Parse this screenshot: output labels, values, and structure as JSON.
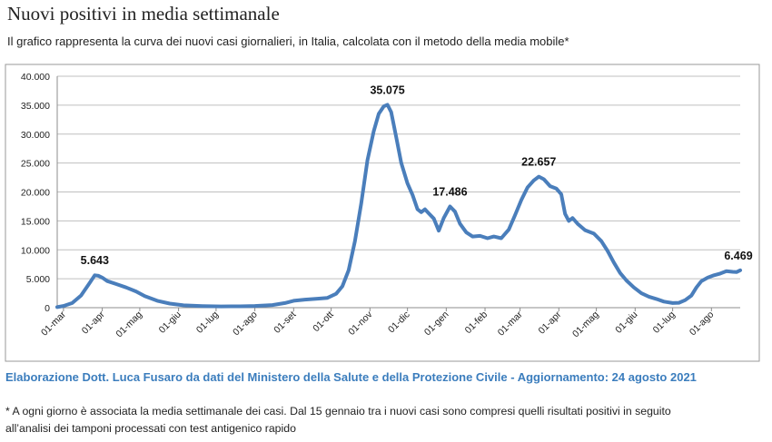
{
  "header": {
    "title": "Nuovi positivi in media settimanale",
    "subtitle": "Il grafico rappresenta la curva dei nuovi casi giornalieri, in Italia, calcolata con il metodo della media mobile*"
  },
  "footer": {
    "credit": "Elaborazione Dott. Luca Fusaro da dati del Ministero della Salute e della Protezione Civile - Aggiornamento: 24 agosto 2021",
    "footnote_line1": "* A ogni giorno è associata la media settimanale dei casi. Dal 15 gennaio tra i nuovi casi sono compresi quelli risultati positivi in seguito",
    "footnote_line2": "all’analisi dei tamponi processati con test antigenico rapido"
  },
  "colors": {
    "line": "#4a7ebb",
    "grid": "#bfbfbf",
    "credit": "#3b7dbd"
  },
  "chart_data": {
    "type": "line",
    "title": "",
    "xlabel": "",
    "ylabel": "",
    "ylim": [
      0,
      40000
    ],
    "yticks": [
      0,
      5000,
      10000,
      15000,
      20000,
      25000,
      30000,
      35000,
      40000
    ],
    "ytick_labels": [
      "0",
      "5.000",
      "10.000",
      "15.000",
      "20.000",
      "25.000",
      "30.000",
      "35.000",
      "40.000"
    ],
    "grid": true,
    "legend": "none",
    "xticks": [
      {
        "label": "01-mar",
        "date": "2020-03-01"
      },
      {
        "label": "01-apr",
        "date": "2020-04-01"
      },
      {
        "label": "01-mag",
        "date": "2020-05-01"
      },
      {
        "label": "01-giu",
        "date": "2020-06-01"
      },
      {
        "label": "01-lug",
        "date": "2020-07-01"
      },
      {
        "label": "01-ago",
        "date": "2020-08-01"
      },
      {
        "label": "01-set",
        "date": "2020-09-01"
      },
      {
        "label": "01-ott",
        "date": "2020-10-01"
      },
      {
        "label": "01-nov",
        "date": "2020-11-01"
      },
      {
        "label": "01-dic",
        "date": "2020-12-01"
      },
      {
        "label": "01-gen",
        "date": "2021-01-01"
      },
      {
        "label": "01-feb",
        "date": "2021-02-01"
      },
      {
        "label": "01-mar",
        "date": "2021-03-01"
      },
      {
        "label": "01-apr",
        "date": "2021-04-01"
      },
      {
        "label": "01-mag",
        "date": "2021-05-01"
      },
      {
        "label": "01-giu",
        "date": "2021-06-01"
      },
      {
        "label": "01-lug",
        "date": "2021-07-01"
      },
      {
        "label": "01-ago",
        "date": "2021-08-01"
      }
    ],
    "xlim": [
      "2020-02-25",
      "2021-08-24"
    ],
    "series": [
      {
        "points": [
          [
            "2020-02-25",
            100
          ],
          [
            "2020-03-01",
            300
          ],
          [
            "2020-03-08",
            800
          ],
          [
            "2020-03-15",
            2100
          ],
          [
            "2020-03-22",
            4300
          ],
          [
            "2020-03-26",
            5600
          ],
          [
            "2020-03-29",
            5500
          ],
          [
            "2020-04-01",
            5200
          ],
          [
            "2020-04-05",
            4600
          ],
          [
            "2020-04-12",
            4100
          ],
          [
            "2020-04-20",
            3500
          ],
          [
            "2020-04-28",
            2800
          ],
          [
            "2020-05-05",
            2000
          ],
          [
            "2020-05-15",
            1200
          ],
          [
            "2020-05-25",
            700
          ],
          [
            "2020-06-05",
            400
          ],
          [
            "2020-06-20",
            280
          ],
          [
            "2020-07-05",
            220
          ],
          [
            "2020-07-20",
            230
          ],
          [
            "2020-08-01",
            300
          ],
          [
            "2020-08-15",
            450
          ],
          [
            "2020-08-25",
            800
          ],
          [
            "2020-09-01",
            1200
          ],
          [
            "2020-09-10",
            1400
          ],
          [
            "2020-09-20",
            1550
          ],
          [
            "2020-09-28",
            1700
          ],
          [
            "2020-10-05",
            2400
          ],
          [
            "2020-10-10",
            3700
          ],
          [
            "2020-10-15",
            6500
          ],
          [
            "2020-10-20",
            11500
          ],
          [
            "2020-10-25",
            18000
          ],
          [
            "2020-10-30",
            25500
          ],
          [
            "2020-11-04",
            30500
          ],
          [
            "2020-11-08",
            33500
          ],
          [
            "2020-11-12",
            34800
          ],
          [
            "2020-11-15",
            35075
          ],
          [
            "2020-11-18",
            33800
          ],
          [
            "2020-11-22",
            29500
          ],
          [
            "2020-11-26",
            25000
          ],
          [
            "2020-12-01",
            21500
          ],
          [
            "2020-12-05",
            19500
          ],
          [
            "2020-12-09",
            17000
          ],
          [
            "2020-12-12",
            16500
          ],
          [
            "2020-12-15",
            17000
          ],
          [
            "2020-12-18",
            16300
          ],
          [
            "2020-12-22",
            15400
          ],
          [
            "2020-12-26",
            13300
          ],
          [
            "2020-12-30",
            15500
          ],
          [
            "2021-01-04",
            17486
          ],
          [
            "2021-01-08",
            16600
          ],
          [
            "2021-01-12",
            14500
          ],
          [
            "2021-01-17",
            13000
          ],
          [
            "2021-01-22",
            12300
          ],
          [
            "2021-01-28",
            12400
          ],
          [
            "2021-02-03",
            12000
          ],
          [
            "2021-02-08",
            12300
          ],
          [
            "2021-02-14",
            12000
          ],
          [
            "2021-02-20",
            13500
          ],
          [
            "2021-02-25",
            16000
          ],
          [
            "2021-03-02",
            18600
          ],
          [
            "2021-03-07",
            20800
          ],
          [
            "2021-03-12",
            22000
          ],
          [
            "2021-03-16",
            22657
          ],
          [
            "2021-03-20",
            22200
          ],
          [
            "2021-03-25",
            21000
          ],
          [
            "2021-03-30",
            20600
          ],
          [
            "2021-04-03",
            19600
          ],
          [
            "2021-04-06",
            16200
          ],
          [
            "2021-04-09",
            15000
          ],
          [
            "2021-04-12",
            15500
          ],
          [
            "2021-04-16",
            14500
          ],
          [
            "2021-04-22",
            13400
          ],
          [
            "2021-04-29",
            12800
          ],
          [
            "2021-05-05",
            11500
          ],
          [
            "2021-05-10",
            9800
          ],
          [
            "2021-05-15",
            7800
          ],
          [
            "2021-05-20",
            6000
          ],
          [
            "2021-05-25",
            4700
          ],
          [
            "2021-05-31",
            3500
          ],
          [
            "2021-06-06",
            2500
          ],
          [
            "2021-06-12",
            1900
          ],
          [
            "2021-06-18",
            1500
          ],
          [
            "2021-06-24",
            1050
          ],
          [
            "2021-07-01",
            800
          ],
          [
            "2021-07-06",
            850
          ],
          [
            "2021-07-11",
            1300
          ],
          [
            "2021-07-16",
            2100
          ],
          [
            "2021-07-20",
            3500
          ],
          [
            "2021-07-24",
            4600
          ],
          [
            "2021-07-29",
            5200
          ],
          [
            "2021-08-03",
            5600
          ],
          [
            "2021-08-08",
            5900
          ],
          [
            "2021-08-13",
            6300
          ],
          [
            "2021-08-18",
            6200
          ],
          [
            "2021-08-21",
            6150
          ],
          [
            "2021-08-24",
            6469
          ]
        ]
      }
    ],
    "annotations": [
      {
        "label": "5.643",
        "date": "2020-03-26",
        "value": 5643
      },
      {
        "label": "35.075",
        "date": "2020-11-15",
        "value": 35075
      },
      {
        "label": "17.486",
        "date": "2021-01-04",
        "value": 17486
      },
      {
        "label": "22.657",
        "date": "2021-03-16",
        "value": 22657
      },
      {
        "label": "6.469",
        "date": "2021-08-24",
        "value": 6469
      }
    ]
  }
}
